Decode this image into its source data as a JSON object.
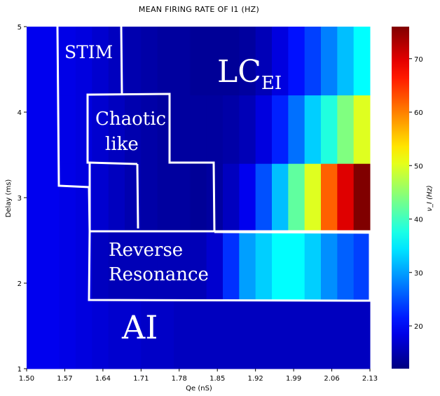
{
  "chart_data": {
    "type": "heatmap",
    "title": "MEAN FIRING RATE OF I1 (HZ)",
    "xlabel": "Qe (nS)",
    "ylabel": "Delay (ms)",
    "x_ticks": [
      "1.50",
      "1.57",
      "1.64",
      "1.71",
      "1.78",
      "1.85",
      "1.92",
      "1.99",
      "2.06",
      "2.13"
    ],
    "y_ticks": [
      "1",
      "2",
      "3",
      "4",
      "5"
    ],
    "xlim": [
      1.5,
      2.13
    ],
    "ylim": [
      1,
      5
    ],
    "colorbar": {
      "label": "ν_I (Hz)",
      "ticks": [
        "20",
        "30",
        "40",
        "50",
        "60",
        "70"
      ],
      "range": [
        12,
        76
      ],
      "colormap": "jet"
    },
    "row_edges": [
      1,
      1.8,
      2.6,
      3.4,
      4.2,
      5
    ],
    "x_columns": [
      1.5,
      1.53,
      1.56,
      1.59,
      1.62,
      1.65,
      1.68,
      1.71,
      1.74,
      1.77,
      1.8,
      1.83,
      1.86,
      1.89,
      1.92,
      1.95,
      1.98,
      2.01,
      2.04,
      2.07,
      2.1
    ],
    "values": [
      [
        19,
        19,
        18.5,
        18,
        17.5,
        17,
        17,
        16.5,
        16.5,
        16,
        16,
        16,
        16,
        16,
        16,
        16,
        16,
        16,
        16,
        16,
        16
      ],
      [
        19,
        19,
        18.5,
        18,
        16,
        15.5,
        15.5,
        15.5,
        15.5,
        15.5,
        15.5,
        17,
        23,
        30,
        33,
        36,
        36,
        33,
        29,
        26,
        24
      ],
      [
        19,
        19,
        18.5,
        18,
        17,
        16,
        15,
        14.5,
        14,
        14,
        13.5,
        14,
        16,
        19,
        25,
        32,
        42,
        50,
        62,
        70,
        76
      ],
      [
        19,
        19,
        18.5,
        18,
        17,
        16,
        15,
        14.5,
        14,
        14,
        14,
        14,
        14.5,
        15.5,
        18,
        22,
        27,
        33,
        38,
        44,
        50
      ],
      [
        19,
        19,
        18.5,
        18,
        17,
        16,
        15,
        14.5,
        14,
        14,
        13.5,
        13.5,
        13.5,
        14,
        15.5,
        18,
        21,
        24,
        28,
        32,
        36
      ]
    ],
    "regions": [
      {
        "label": "STIM"
      },
      {
        "label": "Chaotic",
        "label2": "like"
      },
      {
        "label": "LC",
        "subscript": "EI"
      },
      {
        "label": "Reverse",
        "label2": "Resonance"
      },
      {
        "label": "AI"
      }
    ],
    "colors": {
      "boundary": "#ffffff",
      "background": "#ffffff"
    }
  }
}
